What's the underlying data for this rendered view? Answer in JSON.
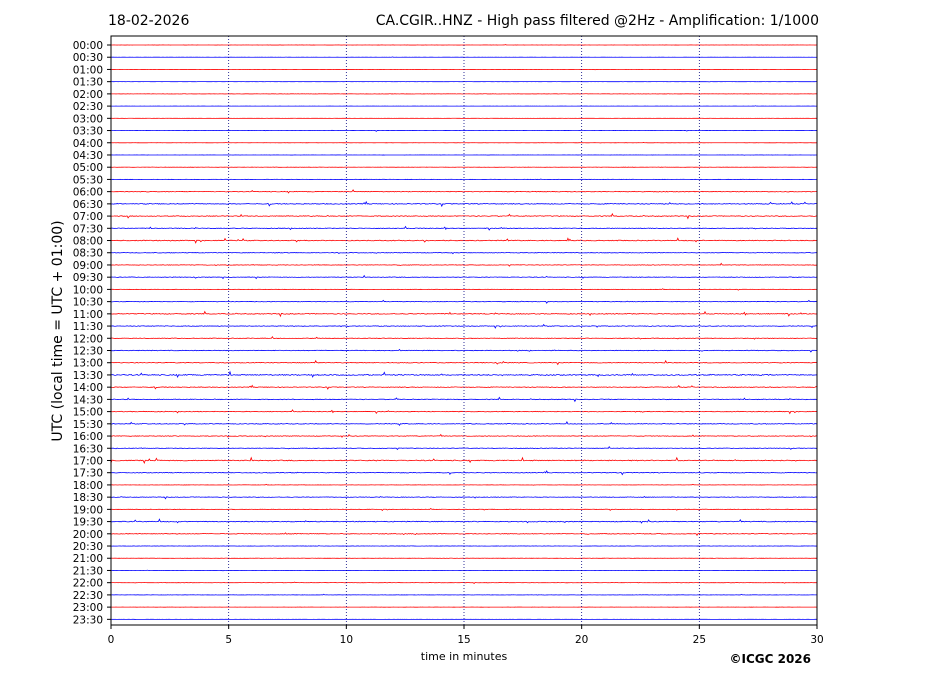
{
  "date": "18-02-2026",
  "title": "CA.CGIR..HNZ - High pass filtered @2Hz - Amplification: 1/1000",
  "copyright": "©ICGC 2026",
  "colors": {
    "trace_a": "#ff0000",
    "trace_b": "#0000ff",
    "grid": "#000080",
    "axis": "#000000"
  },
  "chart_data": {
    "type": "line",
    "title": "CA.CGIR..HNZ - High pass filtered @2Hz - Amplification: 1/1000",
    "xlabel": "time in minutes",
    "ylabel": "UTC (local time = UTC + 01:00)",
    "xlim": [
      0,
      30
    ],
    "x_ticks": [
      "0",
      "5",
      "10",
      "15",
      "20",
      "25",
      "30"
    ],
    "vertical_grid_at": [
      5,
      10,
      15,
      20,
      25
    ],
    "grid": true,
    "series_colors_alternate": [
      "#ff0000",
      "#0000ff"
    ],
    "rows": [
      "00:00",
      "00:30",
      "01:00",
      "01:30",
      "02:00",
      "02:30",
      "03:00",
      "03:30",
      "04:00",
      "04:30",
      "05:00",
      "05:30",
      "06:00",
      "06:30",
      "07:00",
      "07:30",
      "08:00",
      "08:30",
      "09:00",
      "09:30",
      "10:00",
      "10:30",
      "11:00",
      "11:30",
      "12:00",
      "12:30",
      "13:00",
      "13:30",
      "14:00",
      "14:30",
      "15:00",
      "15:30",
      "16:00",
      "16:30",
      "17:00",
      "17:30",
      "18:00",
      "18:30",
      "19:00",
      "19:30",
      "20:00",
      "20:30",
      "21:00",
      "21:30",
      "22:00",
      "22:30",
      "23:00",
      "23:30"
    ],
    "activity_level": [
      0.1,
      0.1,
      0.1,
      0.1,
      0.2,
      0.1,
      0.1,
      0.2,
      0.1,
      0.1,
      0.2,
      0.2,
      0.5,
      0.6,
      0.6,
      0.5,
      0.6,
      0.4,
      0.4,
      0.4,
      0.2,
      0.4,
      0.6,
      0.5,
      0.4,
      0.5,
      0.5,
      0.8,
      0.5,
      0.5,
      0.5,
      0.5,
      0.5,
      0.4,
      0.7,
      0.5,
      0.2,
      0.4,
      0.3,
      0.6,
      0.5,
      0.2,
      0.2,
      0.1,
      0.2,
      0.2,
      0.1,
      0.1
    ]
  }
}
